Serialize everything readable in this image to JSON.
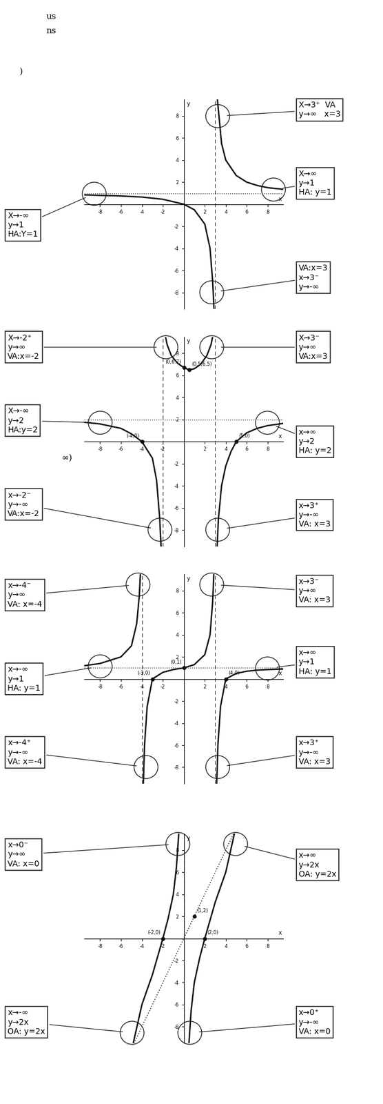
{
  "page_text": [
    "us",
    "ns",
    ")",
    "∞)"
  ],
  "chart_data": [
    {
      "type": "line",
      "x_label": "x",
      "y_label": "y",
      "color": "#111111",
      "xlim": [
        -9.5,
        9.5
      ],
      "ylim": [
        -9.5,
        9.5
      ],
      "xticks": [
        -8,
        -6,
        -4,
        -2,
        2,
        4,
        6,
        8
      ],
      "yticks": [
        -8,
        -6,
        -4,
        -2,
        2,
        4,
        6,
        8
      ],
      "vertical_asymptotes": [
        3
      ],
      "horizontal_asymptotes": [
        1
      ],
      "branches": [
        {
          "x": [
            -9.5,
            -8,
            -6,
            -4,
            -2,
            0,
            1,
            2,
            2.5,
            2.75,
            2.9
          ],
          "y": [
            0.85,
            0.8,
            0.75,
            0.65,
            0.45,
            0,
            -0.5,
            -1.8,
            -4,
            -7,
            -10
          ]
        },
        {
          "x": [
            3.15,
            3.3,
            3.6,
            4,
            5,
            6,
            7,
            8,
            9.5
          ],
          "y": [
            10,
            8.5,
            5.5,
            4,
            2.6,
            2,
            1.7,
            1.5,
            1.35
          ]
        }
      ],
      "points": [],
      "annotations": [
        "X→3⁺  VA\ny→∞   x=3",
        "X→∞\ny→1\nHA: y=1",
        "X→-∞\ny→1\nHA:Y=1",
        "VA:x=3\nx→3⁻\ny→-∞"
      ]
    },
    {
      "type": "line",
      "x_label": "x",
      "y_label": "y",
      "color": "#111111",
      "xlim": [
        -9.5,
        9.5
      ],
      "ylim": [
        -9.5,
        9.5
      ],
      "xticks": [
        -8,
        -6,
        -4,
        -2,
        2,
        4,
        6,
        8
      ],
      "yticks": [
        -8,
        -6,
        -4,
        -2,
        2,
        4,
        6,
        8
      ],
      "vertical_asymptotes": [
        -2,
        3
      ],
      "horizontal_asymptotes": [
        2
      ],
      "branches": [
        {
          "x": [
            -9.5,
            -8,
            -6,
            -5,
            -4,
            -3,
            -2.6,
            -2.3,
            -2.15
          ],
          "y": [
            1.75,
            1.6,
            1.2,
            0.7,
            0,
            -1.5,
            -3.5,
            -7,
            -10
          ]
        },
        {
          "x": [
            -1.85,
            -1.6,
            -1.2,
            -0.6,
            0,
            0.5,
            1,
            1.6,
            2.2,
            2.6,
            2.85
          ],
          "y": [
            10,
            8.8,
            7.8,
            7.1,
            6.7,
            6.5,
            6.6,
            7,
            7.8,
            8.8,
            10
          ]
        },
        {
          "x": [
            3.15,
            3.3,
            3.6,
            4,
            4.5,
            5,
            6,
            7,
            8,
            9.5
          ],
          "y": [
            -10,
            -7,
            -4,
            -2.2,
            -0.9,
            0,
            0.8,
            1.2,
            1.45,
            1.65
          ]
        }
      ],
      "points": [
        {
          "x": 0,
          "y": 6.7,
          "label": "(0,6.7)"
        },
        {
          "x": 0.5,
          "y": 6.5,
          "label": "(0.5,6.5)"
        },
        {
          "x": -4,
          "y": 0,
          "label": "(-4,0)"
        },
        {
          "x": 5,
          "y": 0,
          "label": "(5,0)"
        }
      ],
      "annotations": [
        "X→-2⁺\ny→∞\nVA:x=-2",
        "X→3⁻\ny→∞\nVA:x=3",
        "X→-∞\ny→2\nHA:y=2",
        "x→∞\ny→2\nHA: y=2",
        "x→-2⁻\ny→-∞\nVA:x=-2",
        "x→3⁺\ny→-∞\nVA: x=3"
      ]
    },
    {
      "type": "line",
      "x_label": "x",
      "y_label": "y",
      "color": "#111111",
      "xlim": [
        -9.5,
        9.5
      ],
      "ylim": [
        -9.5,
        9.5
      ],
      "xticks": [
        -8,
        -6,
        -4,
        -2,
        2,
        4,
        6,
        8
      ],
      "yticks": [
        -8,
        -6,
        -4,
        -2,
        2,
        4,
        6,
        8
      ],
      "vertical_asymptotes": [
        -4,
        3
      ],
      "horizontal_asymptotes": [
        1
      ],
      "branches": [
        {
          "x": [
            -9.5,
            -8,
            -6,
            -5,
            -4.5,
            -4.25,
            -4.12
          ],
          "y": [
            1.2,
            1.4,
            2,
            3,
            5,
            7.5,
            10
          ]
        },
        {
          "x": [
            -3.88,
            -3.75,
            -3.5,
            -3,
            -2,
            -1,
            0,
            1,
            2,
            2.5,
            2.75,
            2.88
          ],
          "y": [
            -10,
            -6,
            -2.5,
            0,
            0.6,
            0.85,
            1,
            1.3,
            2.2,
            4,
            7,
            10
          ]
        },
        {
          "x": [
            3.12,
            3.25,
            3.5,
            4,
            5,
            6,
            7,
            8,
            9.5
          ],
          "y": [
            -10,
            -6,
            -2.5,
            0,
            0.5,
            0.7,
            0.8,
            0.85,
            0.9
          ]
        }
      ],
      "points": [
        {
          "x": -3,
          "y": 0,
          "label": "(-3,0)"
        },
        {
          "x": 0,
          "y": 1,
          "label": "(0,1)"
        },
        {
          "x": 4,
          "y": 0,
          "label": "(4,0)"
        }
      ],
      "annotations": [
        "x→-4⁻\ny→∞\nVA: x=-4",
        "x→3⁻\ny→∞\nVA: x=3",
        "x→∞\ny→1\nHA: y=1",
        "x→-∞\ny→1\nHA: y=1",
        "x→-4⁺\ny→-∞\nVA: x=-4",
        "x→3⁺\ny→-∞\nVA: x=3"
      ]
    },
    {
      "type": "line",
      "x_label": "x",
      "y_label": "y",
      "color": "#111111",
      "xlim": [
        -9.5,
        9.5
      ],
      "ylim": [
        -9.5,
        9.5
      ],
      "xticks": [
        -8,
        -6,
        -4,
        -2,
        2,
        4,
        6,
        8
      ],
      "yticks": [
        -8,
        -6,
        -4,
        -2,
        2,
        4,
        6,
        8
      ],
      "vertical_asymptotes": [
        0
      ],
      "horizontal_asymptotes": [],
      "oblique_asymptotes": [
        {
          "x": [
            -4.75,
            4.75
          ],
          "y": [
            -9.5,
            9.5
          ]
        }
      ],
      "branches": [
        {
          "x": [
            -4.9,
            -4,
            -3,
            -2,
            -1.5,
            -1,
            -0.7,
            -0.45
          ],
          "y": [
            -9.8,
            -6,
            -3.3,
            0,
            1.8,
            4,
            6.5,
            10
          ]
        },
        {
          "x": [
            0.45,
            0.7,
            1,
            1.5,
            2,
            3,
            4,
            4.9
          ],
          "y": [
            -10,
            -6.5,
            -4,
            -1.8,
            0,
            3.3,
            6,
            9.8
          ]
        }
      ],
      "points": [
        {
          "x": -2,
          "y": 0,
          "label": "(-2,0)"
        },
        {
          "x": 2,
          "y": 0,
          "label": "(2,0)"
        },
        {
          "x": 1,
          "y": 2,
          "label": "(1,2)"
        }
      ],
      "annotations": [
        "x→0⁻\ny→∞\nVA: x=0",
        "x→∞\ny→2x\nOA: y=2x",
        "x→-∞\ny→2x\nOA: y=2x",
        "x→0⁺\ny→-∞\nVA: x=0"
      ]
    }
  ]
}
